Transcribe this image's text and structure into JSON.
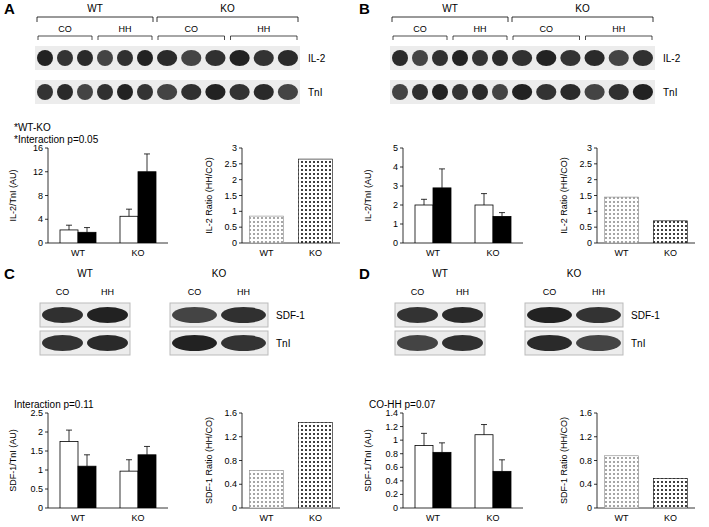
{
  "blots": [
    {
      "letter": "A",
      "groups": [
        {
          "label": "WT",
          "conditions": [
            "CO",
            "HH"
          ]
        },
        {
          "label": "KO",
          "conditions": [
            "CO",
            "HH"
          ]
        }
      ],
      "bands": [
        "IL-2",
        "TnI"
      ]
    },
    {
      "letter": "B",
      "groups": [
        {
          "label": "WT",
          "conditions": [
            "CO",
            "HH"
          ]
        },
        {
          "label": "KO",
          "conditions": [
            "CO",
            "HH"
          ]
        }
      ],
      "bands": [
        "IL-2",
        "TnI"
      ]
    },
    {
      "letter": "C",
      "groups": [
        {
          "label": "WT",
          "conditions": [
            "CO",
            "HH"
          ]
        },
        {
          "label": "KO",
          "conditions": [
            "CO",
            "HH"
          ]
        }
      ],
      "bands": [
        "SDF-1",
        "TnI"
      ]
    },
    {
      "letter": "D",
      "groups": [
        {
          "label": "WT",
          "conditions": [
            "CO",
            "HH"
          ]
        },
        {
          "label": "KO",
          "conditions": [
            "CO",
            "HH"
          ]
        }
      ],
      "bands": [
        "SDF-1",
        "TnI"
      ]
    }
  ],
  "chart_data": [
    {
      "type": "bar",
      "y_label": "IL-2/TnI (AU)",
      "annotations": [
        "*WT-KO",
        "*Interaction p=0.05"
      ],
      "categories": [
        "WT",
        "KO"
      ],
      "series": [
        {
          "color": "#ffffff",
          "values": [
            2.2,
            4.5
          ],
          "errors": [
            0.8,
            1.2
          ]
        },
        {
          "color": "#000000",
          "values": [
            1.8,
            12
          ],
          "errors": [
            0.8,
            3
          ]
        }
      ],
      "ylim": [
        0,
        16
      ],
      "yticks": [
        0,
        4,
        8,
        12,
        16
      ]
    },
    {
      "type": "bar",
      "y_label": "IL-2 Ratio (HH/CO)",
      "categories": [
        "WT",
        "KO"
      ],
      "values": [
        0.85,
        2.65
      ],
      "colors": [
        "#888888",
        "#000000"
      ],
      "ylim": [
        0,
        3
      ],
      "yticks": [
        0,
        0.5,
        1,
        1.5,
        2,
        2.5,
        3
      ]
    },
    {
      "type": "bar",
      "y_label": "IL-2/TnI (AU)",
      "categories": [
        "WT",
        "KO"
      ],
      "series": [
        {
          "color": "#ffffff",
          "values": [
            2.0,
            2.0
          ],
          "errors": [
            0.3,
            0.6
          ]
        },
        {
          "color": "#000000",
          "values": [
            2.9,
            1.4
          ],
          "errors": [
            1.0,
            0.2
          ]
        }
      ],
      "ylim": [
        0,
        5
      ],
      "yticks": [
        0,
        1,
        2,
        3,
        4,
        5
      ]
    },
    {
      "type": "bar",
      "y_label": "IL-2 Ratio (HH/CO)",
      "categories": [
        "WT",
        "KO"
      ],
      "values": [
        1.45,
        0.7
      ],
      "colors": [
        "#888888",
        "#000000"
      ],
      "ylim": [
        0,
        3
      ],
      "yticks": [
        0,
        0.5,
        1,
        1.5,
        2,
        2.5,
        3
      ]
    },
    {
      "type": "bar",
      "y_label": "SDF-1/TnI (AU)",
      "annotations": [
        "Interaction p=0.11"
      ],
      "categories": [
        "WT",
        "KO"
      ],
      "series": [
        {
          "color": "#ffffff",
          "values": [
            1.75,
            0.97
          ],
          "errors": [
            0.3,
            0.3
          ]
        },
        {
          "color": "#000000",
          "values": [
            1.1,
            1.4
          ],
          "errors": [
            0.3,
            0.22
          ]
        }
      ],
      "ylim": [
        0,
        2.5
      ],
      "yticks": [
        0,
        0.5,
        1,
        1.5,
        2,
        2.5
      ]
    },
    {
      "type": "bar",
      "y_label": "SDF-1 Ratio (HH/CO)",
      "categories": [
        "WT",
        "KO"
      ],
      "values": [
        0.63,
        1.44
      ],
      "colors": [
        "#888888",
        "#000000"
      ],
      "ylim": [
        0,
        1.6
      ],
      "yticks": [
        0,
        0.4,
        0.8,
        1.2,
        1.6
      ]
    },
    {
      "type": "bar",
      "y_label": "SDF-1/TnI (AU)",
      "annotations": [
        "CO-HH p=0.07"
      ],
      "categories": [
        "WT",
        "KO"
      ],
      "series": [
        {
          "color": "#ffffff",
          "values": [
            0.92,
            1.08
          ],
          "errors": [
            0.18,
            0.15
          ]
        },
        {
          "color": "#000000",
          "values": [
            0.82,
            0.54
          ],
          "errors": [
            0.14,
            0.17
          ]
        }
      ],
      "ylim": [
        0,
        1.4
      ],
      "yticks": [
        0,
        0.2,
        0.4,
        0.6,
        0.8,
        1,
        1.2,
        1.4
      ]
    },
    {
      "type": "bar",
      "y_label": "SDF-1 Ratio (HH/CO)",
      "categories": [
        "WT",
        "KO"
      ],
      "values": [
        0.88,
        0.5
      ],
      "colors": [
        "#888888",
        "#000000"
      ],
      "ylim": [
        0,
        1.6
      ],
      "yticks": [
        0,
        0.4,
        0.8,
        1.2,
        1.6
      ]
    }
  ]
}
